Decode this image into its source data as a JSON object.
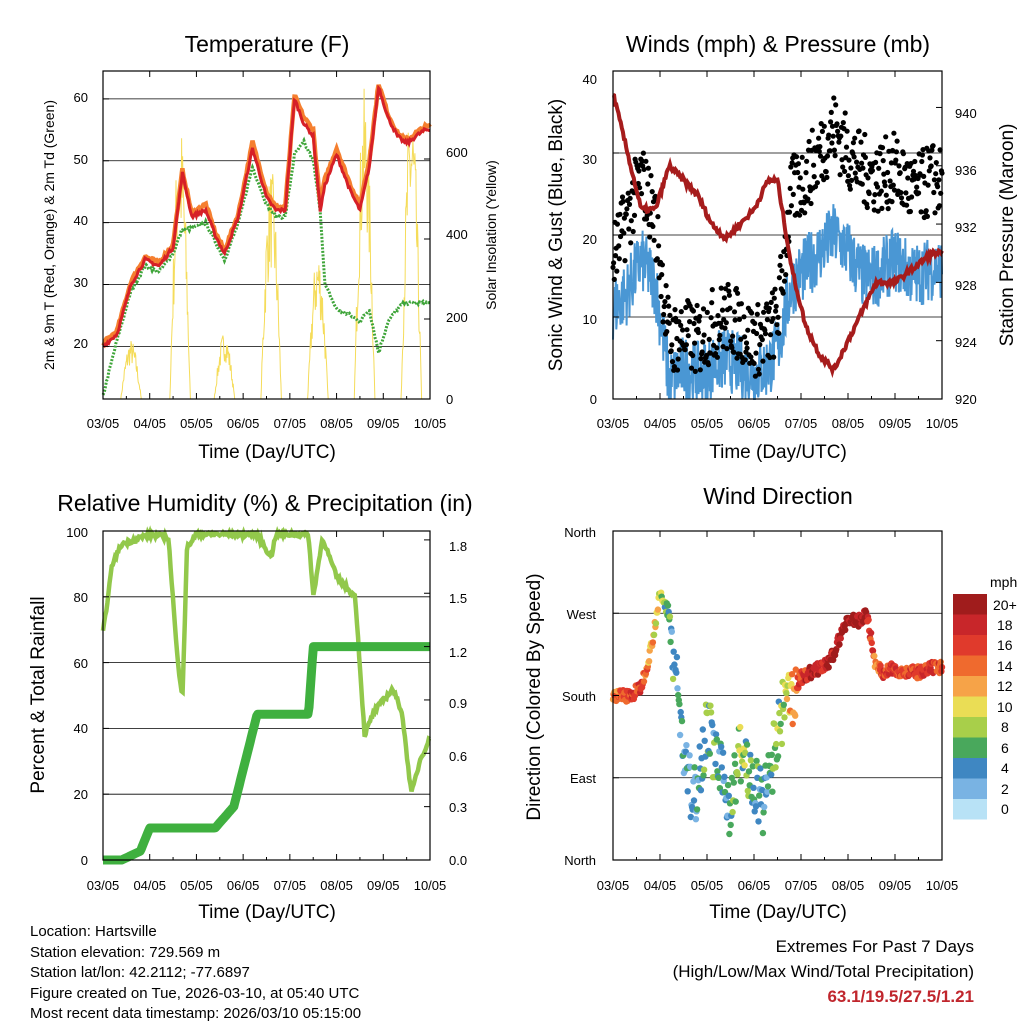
{
  "x_tick_labels": [
    "03/05",
    "04/05",
    "05/05",
    "06/05",
    "07/05",
    "08/05",
    "09/05",
    "10/05"
  ],
  "x_label": "Time (Day/UTC)",
  "colors": {
    "temp2m": "#d62027",
    "temp9m": "#f57f2f",
    "dew": "#3fa53a",
    "solar": "#f5dc5a",
    "gust": "#000000",
    "wind": "#4a97d4",
    "pressure": "#a61c1c",
    "rh": "#92c84b",
    "rain": "#3fb03f"
  },
  "charts": {
    "temperature": {
      "title": "Temperature (F)",
      "ylabel": "2m & 9m T (Red, Orange) & 2m Td (Green)",
      "y2label": "Solar Insolation (Yellow)",
      "y_ticks": [
        "20",
        "30",
        "40",
        "50",
        "60"
      ],
      "y2_ticks": [
        "0",
        "200",
        "400",
        "600"
      ]
    },
    "winds": {
      "title": "Winds (mph) & Pressure (mb)",
      "ylabel": "Sonic Wind & Gust (Blue, Black)",
      "y2label": "Station Pressure (Maroon)",
      "y_ticks": [
        "0",
        "10",
        "20",
        "30",
        "40"
      ],
      "y2_ticks": [
        "920",
        "924",
        "928",
        "932",
        "936",
        "940"
      ]
    },
    "humidity": {
      "title": "Relative Humidity (%) & Precipitation (in)",
      "ylabel": "Percent & Total Rainfall",
      "y_ticks": [
        "0",
        "20",
        "40",
        "60",
        "80",
        "100"
      ],
      "y2_ticks": [
        "0.0",
        "0.3",
        "0.6",
        "0.9",
        "1.2",
        "1.5",
        "1.8"
      ]
    },
    "direction": {
      "title": "Wind Direction",
      "ylabel": "Direction (Colored By Speed)",
      "y_ticks": [
        "North",
        "East",
        "South",
        "West",
        "North"
      ],
      "legend_title": "mph",
      "legend_labels": [
        "20+",
        "18",
        "16",
        "14",
        "12",
        "10",
        "8",
        "6",
        "4",
        "2",
        "0"
      ],
      "legend_colors": [
        "#a01c1c",
        "#c8262a",
        "#e03a2c",
        "#ef6a2e",
        "#f6a348",
        "#eadd55",
        "#a8cf4a",
        "#49a85c",
        "#3f87c2",
        "#79b3e3",
        "#b8e2f6"
      ]
    }
  },
  "chart_data": [
    {
      "type": "line",
      "title": "Temperature (F)",
      "x": [
        0,
        0.3,
        0.6,
        0.9,
        1.2,
        1.5,
        1.7,
        1.9,
        2.2,
        2.4,
        2.6,
        2.9,
        3.2,
        3.5,
        3.7,
        3.9,
        4.1,
        4.3,
        4.5,
        4.65,
        4.75,
        5.0,
        5.3,
        5.5,
        5.7,
        5.9,
        6.1,
        6.3,
        6.45,
        6.55,
        6.7,
        6.9,
        7.0
      ],
      "series": [
        {
          "name": "2m T",
          "values": [
            20,
            22,
            30,
            34,
            33,
            36,
            48,
            41,
            42,
            38,
            35,
            41,
            52,
            44,
            42,
            42,
            60,
            56,
            54,
            42,
            46,
            51,
            45,
            42,
            49,
            62,
            57,
            54,
            53,
            53,
            54,
            55,
            55
          ]
        },
        {
          "name": "9m T",
          "values": [
            20.5,
            22.5,
            30.5,
            34.5,
            33.5,
            36.5,
            48.5,
            41.5,
            43,
            38.5,
            35.5,
            41.5,
            53,
            45,
            42.5,
            42.5,
            60.5,
            57,
            55,
            43,
            47,
            52,
            46,
            43,
            50,
            62.5,
            57.5,
            54.5,
            53.5,
            53.5,
            54.5,
            55.5,
            55.5
          ]
        },
        {
          "name": "2m Td",
          "values": [
            12,
            21,
            29,
            33,
            32,
            35,
            39,
            39,
            40,
            37,
            34,
            40,
            49,
            43,
            41,
            41,
            51,
            53,
            50,
            42,
            30,
            26,
            25,
            24,
            26,
            19,
            24,
            26,
            27,
            27,
            27,
            27,
            27
          ]
        }
      ],
      "solar_peaks_day": [
        0.6,
        1.65,
        2.6,
        3.6,
        4.6,
        5.6,
        6.6
      ],
      "solar_peak_values": [
        150,
        700,
        170,
        580,
        380,
        780,
        760
      ],
      "ylim": [
        11.5,
        64.5
      ],
      "y2lim": [
        0,
        820
      ],
      "ylabel": "2m & 9m T (Red, Orange) & 2m Td (Green)",
      "y2label": "Solar Insolation (Yellow)",
      "xlabel": "Time (Day/UTC)"
    },
    {
      "type": "line",
      "title": "Winds (mph) & Pressure (mb)",
      "x": [
        0,
        0.3,
        0.6,
        0.9,
        1.2,
        1.5,
        1.8,
        2.1,
        2.4,
        2.7,
        3.0,
        3.3,
        3.5,
        3.8,
        4.1,
        4.4,
        4.7,
        5.0,
        5.3,
        5.6,
        6.0,
        6.4,
        6.8,
        7.0
      ],
      "series": [
        {
          "name": "Gust",
          "values": [
            17,
            22,
            27,
            22,
            7,
            8,
            7,
            9,
            10,
            9,
            7,
            8,
            10,
            25,
            27,
            30,
            33,
            30,
            28,
            27,
            28,
            25,
            27,
            26
          ]
        },
        {
          "name": "Sonic Wind",
          "values": [
            11,
            13,
            17,
            14,
            2,
            4,
            3,
            4,
            5,
            4,
            3,
            4,
            6,
            14,
            16,
            18,
            20,
            18,
            15,
            15,
            17,
            15,
            16,
            16
          ]
        },
        {
          "name": "Station Pressure",
          "values": [
            941,
            937,
            933,
            933,
            936,
            935,
            934,
            932,
            931,
            932,
            933,
            935,
            935,
            929,
            925,
            923,
            922,
            924,
            926,
            928,
            928,
            929,
            930,
            930
          ]
        }
      ],
      "ylim": [
        0,
        40
      ],
      "y2lim": [
        920,
        942.5
      ],
      "ylabel": "Sonic Wind & Gust (Blue, Black)",
      "y2label": "Station Pressure (Maroon)",
      "xlabel": "Time (Day/UTC)"
    },
    {
      "type": "line",
      "title": "Relative Humidity (%) & Precipitation (in)",
      "x": [
        0,
        0.2,
        0.4,
        0.8,
        1.0,
        1.4,
        1.6,
        1.7,
        1.8,
        2.0,
        2.4,
        2.8,
        3.3,
        3.6,
        3.7,
        4.0,
        4.4,
        4.5,
        4.7,
        5.0,
        5.4,
        5.6,
        5.8,
        6.2,
        6.4,
        6.6,
        6.8,
        7.0
      ],
      "series": [
        {
          "name": "Relative Humidity",
          "values": [
            69,
            90,
            96,
            98,
            99,
            98,
            60,
            50,
            95,
            99,
            99,
            99,
            99,
            92,
            99,
            99,
            99,
            80,
            98,
            86,
            80,
            38,
            45,
            52,
            45,
            20,
            31,
            37
          ]
        },
        {
          "name": "Total Rainfall",
          "values": [
            0,
            0,
            0,
            0.05,
            0.18,
            0.18,
            0.18,
            0.18,
            0.18,
            0.18,
            0.18,
            0.3,
            0.82,
            0.82,
            0.82,
            0.82,
            0.82,
            1.2,
            1.2,
            1.2,
            1.2,
            1.2,
            1.2,
            1.2,
            1.2,
            1.2,
            1.2,
            1.2
          ]
        }
      ],
      "ylim": [
        0,
        100
      ],
      "y2lim": [
        0,
        1.85
      ],
      "ylabel": "Percent & Total Rainfall",
      "xlabel": "Time (Day/UTC)"
    },
    {
      "type": "scatter",
      "title": "Wind Direction",
      "x": [
        0,
        0.2,
        0.4,
        0.6,
        0.8,
        1.0,
        1.2,
        1.5,
        1.7,
        2.0,
        2.3,
        2.5,
        2.7,
        3.0,
        3.2,
        3.4,
        3.6,
        3.8,
        4.0,
        4.2,
        4.4,
        4.6,
        4.8,
        5.0,
        5.2,
        5.4,
        5.6,
        5.8,
        6.0,
        6.2,
        6.4,
        6.6,
        6.8,
        7.0
      ],
      "directions_deg": [
        180,
        180,
        180,
        190,
        230,
        290,
        270,
        120,
        60,
        150,
        90,
        60,
        120,
        80,
        60,
        110,
        160,
        180,
        200,
        205,
        210,
        215,
        240,
        265,
        260,
        270,
        210,
        205,
        210,
        205,
        205,
        205,
        210,
        210
      ],
      "speeds_mph": [
        14,
        14,
        16,
        16,
        12,
        9,
        5,
        4,
        4,
        6,
        4,
        5,
        8,
        5,
        4,
        6,
        8,
        12,
        16,
        18,
        18,
        18,
        20,
        20,
        20,
        18,
        14,
        16,
        16,
        16,
        16,
        16,
        16,
        16
      ],
      "ylim": [
        0,
        360
      ],
      "ylabel": "Direction (Colored By Speed)",
      "xlabel": "Time (Day/UTC)"
    }
  ],
  "footer": {
    "location": "Location: Hartsville",
    "elevation": "Station elevation: 729.569 m",
    "latlon": "Station lat/lon: 42.2112; -77.6897",
    "created": "Figure created on Tue, 2026-03-10, at 05:40 UTC",
    "recent": "Most recent data timestamp: 2026/03/10 05:15:00"
  },
  "extremes": {
    "title": "Extremes For Past 7 Days",
    "subtitle": "(High/Low/Max Wind/Total Precipitation)",
    "values": "63.1/19.5/27.5/1.21"
  }
}
